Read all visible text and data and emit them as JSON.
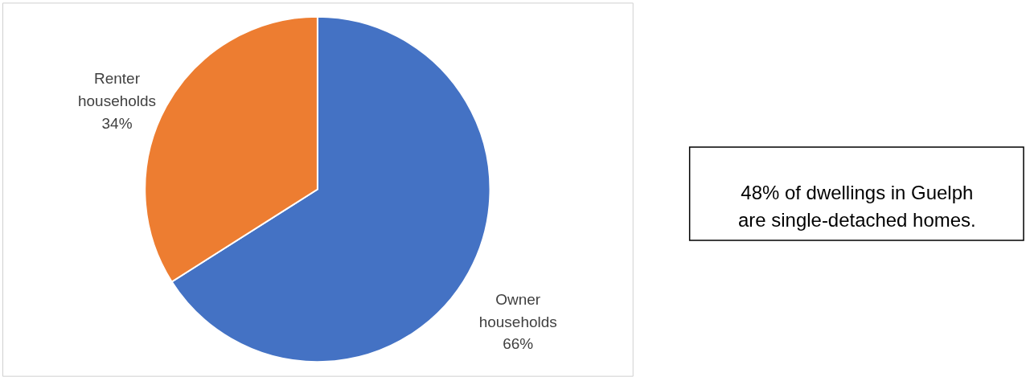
{
  "chart_data": {
    "type": "pie",
    "categories": [
      "Owner households",
      "Renter households"
    ],
    "values": [
      66,
      34
    ],
    "colors": [
      "#4472c4",
      "#ed7d31"
    ],
    "value_labels": [
      "66%",
      "34%"
    ],
    "annotations": [
      "48% of dwellings in Guelph are single-detached homes."
    ]
  }
}
